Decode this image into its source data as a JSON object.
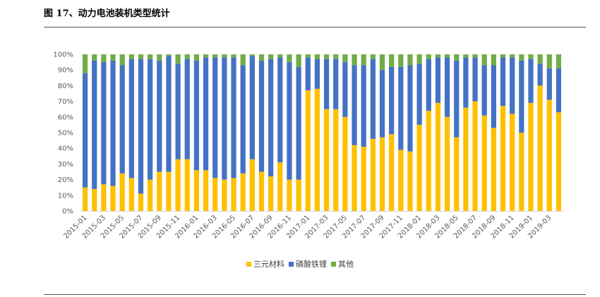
{
  "figure_title": "图 17、动力电池装机类型统计",
  "chart_data": {
    "type": "bar",
    "stacked": true,
    "title": "动力电池装机类型统计",
    "ylim": [
      0,
      100
    ],
    "yticks": [
      "0%",
      "10%",
      "20%",
      "30%",
      "40%",
      "50%",
      "60%",
      "70%",
      "80%",
      "90%",
      "100%"
    ],
    "categories": [
      "2015-01",
      "2015-02",
      "2015-03",
      "2015-04",
      "2015-05",
      "2015-06",
      "2015-07",
      "2015-08",
      "2015-09",
      "2015-10",
      "2015-11",
      "2015-12",
      "2016-01",
      "2016-02",
      "2016-03",
      "2016-04",
      "2016-05",
      "2016-06",
      "2016-07",
      "2016-08",
      "2016-09",
      "2016-10",
      "2016-11",
      "2016-12",
      "2017-01",
      "2017-02",
      "2017-03",
      "2017-04",
      "2017-05",
      "2017-06",
      "2017-07",
      "2017-08",
      "2017-09",
      "2017-10",
      "2017-11",
      "2017-12",
      "2018-01",
      "2018-02",
      "2018-03",
      "2018-04",
      "2018-05",
      "2018-06",
      "2018-07",
      "2018-08",
      "2018-09",
      "2018-10",
      "2018-11",
      "2018-12",
      "2019-01",
      "2019-02",
      "2019-03",
      "2019-04"
    ],
    "xtick_labels": [
      "2015-01",
      "2015-03",
      "2015-05",
      "2015-07",
      "2015-09",
      "2015-11",
      "2016-01",
      "2016-03",
      "2016-05",
      "2016-07",
      "2016-09",
      "2016-11",
      "2017-01",
      "2017-03",
      "2017-05",
      "2017-07",
      "2017-09",
      "2017-11",
      "2018-01",
      "2018-03",
      "2018-05",
      "2018-07",
      "2018-09",
      "2018-11",
      "2019-01",
      "2019-03"
    ],
    "series": [
      {
        "name": "三元材料",
        "color": "#FFC000",
        "values": [
          15,
          14,
          17,
          16,
          24,
          21,
          11,
          20,
          25,
          25,
          33,
          33,
          26,
          26,
          21,
          20,
          21,
          24,
          33,
          25,
          22,
          31,
          20,
          20,
          77,
          78,
          65,
          65,
          60,
          42,
          41,
          46,
          47,
          49,
          39,
          38,
          55,
          64,
          69,
          60,
          47,
          66,
          70,
          61,
          53,
          67,
          62,
          50,
          69,
          80,
          71,
          63
        ]
      },
      {
        "name": "磷酸铁锂",
        "color": "#4472C4",
        "values": [
          73,
          82,
          78,
          80,
          69,
          76,
          86,
          77,
          71,
          74,
          61,
          64,
          70,
          72,
          77,
          78,
          77,
          69,
          66,
          71,
          75,
          67,
          75,
          72,
          21,
          19,
          32,
          32,
          35,
          51,
          52,
          51,
          43,
          43,
          53,
          55,
          39,
          33,
          29,
          38,
          49,
          32,
          28,
          32,
          40,
          31,
          36,
          46,
          28,
          14,
          20,
          28
        ]
      },
      {
        "name": "其他",
        "color": "#70AD47",
        "values": [
          12,
          4,
          5,
          4,
          7,
          3,
          3,
          3,
          4,
          1,
          6,
          3,
          4,
          2,
          2,
          2,
          2,
          7,
          1,
          4,
          3,
          2,
          5,
          8,
          2,
          3,
          3,
          3,
          5,
          7,
          7,
          3,
          10,
          8,
          8,
          7,
          6,
          3,
          2,
          2,
          4,
          2,
          2,
          7,
          7,
          2,
          2,
          4,
          3,
          6,
          9,
          9
        ]
      }
    ],
    "legend_position": "bottom"
  }
}
